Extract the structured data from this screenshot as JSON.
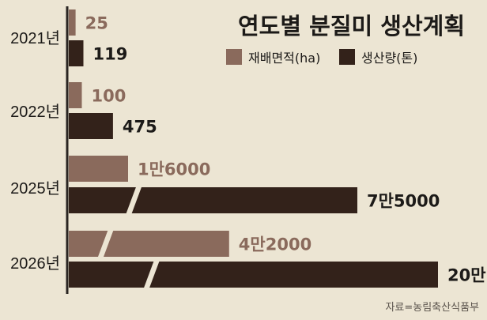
{
  "chart_data": {
    "type": "bar",
    "title": "연도별 분질미 생산계획",
    "categories": [
      "2021년",
      "2022년",
      "2025년",
      "2026년"
    ],
    "series": [
      {
        "name": "재배면적(ha)",
        "color": "#8a6a5c",
        "values": [
          25,
          100,
          16000,
          42000
        ],
        "labels": [
          "25",
          "100",
          "1만6000",
          "4만2000"
        ]
      },
      {
        "name": "생산량(톤)",
        "color": "#33221a",
        "values": [
          119,
          475,
          75000,
          200000
        ],
        "labels": [
          "119",
          "475",
          "7만5000",
          "20만"
        ]
      }
    ],
    "axis_break": true,
    "legend_position": "top-right",
    "source": "자료=농림축산식품부"
  }
}
